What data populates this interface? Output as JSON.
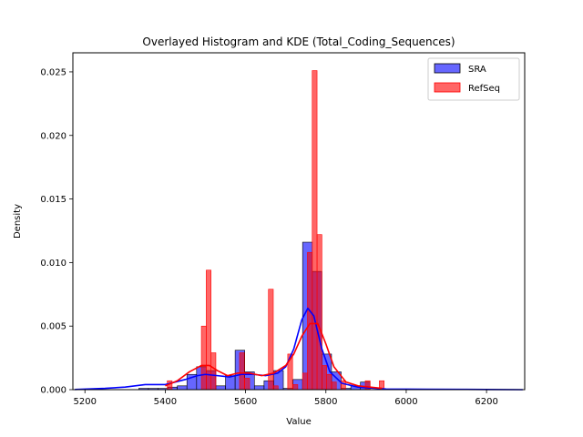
{
  "chart_data": {
    "type": "bar",
    "title": "Overlayed Histogram and KDE (Total_Coding_Sequences)",
    "xlabel": "Value",
    "ylabel": "Density",
    "xlim": [
      5170,
      6295
    ],
    "ylim": [
      0,
      0.0265
    ],
    "xticks": [
      5200,
      5400,
      5600,
      5800,
      6000,
      6200
    ],
    "xtick_labels": [
      "5200",
      "5400",
      "5600",
      "5800",
      "6000",
      "6200"
    ],
    "yticks": [
      0,
      0.005,
      0.01,
      0.015,
      0.02,
      0.025
    ],
    "ytick_labels": [
      "0.000",
      "0.005",
      "0.010",
      "0.015",
      "0.020",
      "0.025"
    ],
    "legend_position": "top-right",
    "series": [
      {
        "name": "SRA",
        "color": "#0000ff",
        "bin_width": 24,
        "bins": [
          [
            5334,
            0.0001
          ],
          [
            5358,
            0.0001
          ],
          [
            5382,
            0.0001
          ],
          [
            5406,
            0.0002
          ],
          [
            5430,
            0.0003
          ],
          [
            5454,
            0.0012
          ],
          [
            5478,
            0.0018
          ],
          [
            5502,
            0.0015
          ],
          [
            5526,
            0.0003
          ],
          [
            5550,
            0.0011
          ],
          [
            5574,
            0.0031
          ],
          [
            5598,
            0.0014
          ],
          [
            5622,
            0.0003
          ],
          [
            5646,
            0.0007
          ],
          [
            5670,
            0.0015
          ],
          [
            5694,
            0.0001
          ],
          [
            5718,
            0.0008
          ],
          [
            5742,
            0.0116
          ],
          [
            5766,
            0.0093
          ],
          [
            5790,
            0.0028
          ],
          [
            5814,
            0.0014
          ],
          [
            5838,
            0.0001
          ],
          [
            5862,
            0.0003
          ],
          [
            5886,
            0.0006
          ]
        ],
        "kde": {
          "x": [
            5175,
            5250,
            5300,
            5350,
            5400,
            5450,
            5480,
            5500,
            5530,
            5560,
            5590,
            5620,
            5650,
            5680,
            5700,
            5720,
            5740,
            5755,
            5770,
            5790,
            5810,
            5840,
            5880,
            5950,
            6050,
            6150,
            6200,
            6290
          ],
          "y": [
            1e-05,
            0.0001,
            0.0002,
            0.0004,
            0.0004,
            0.0008,
            0.0011,
            0.0012,
            0.0011,
            0.001,
            0.0012,
            0.0012,
            0.0011,
            0.0013,
            0.0018,
            0.0032,
            0.0055,
            0.0064,
            0.0058,
            0.0032,
            0.0014,
            0.0005,
            0.0002,
            5e-05,
            3e-05,
            2e-05,
            1e-05,
            0.0
          ]
        }
      },
      {
        "name": "RefSeq",
        "color": "#ff0000",
        "bin_width": 12,
        "bins": [
          [
            5405,
            0.0007
          ],
          [
            5490,
            0.005
          ],
          [
            5502,
            0.0094
          ],
          [
            5514,
            0.0029
          ],
          [
            5585,
            0.0029
          ],
          [
            5598,
            0.0009
          ],
          [
            5657,
            0.0079
          ],
          [
            5669,
            0.0003
          ],
          [
            5705,
            0.0028
          ],
          [
            5718,
            0.0004
          ],
          [
            5742,
            0.0013
          ],
          [
            5754,
            0.0108
          ],
          [
            5766,
            0.0251
          ],
          [
            5778,
            0.0122
          ],
          [
            5790,
            0.0019
          ],
          [
            5802,
            0.0012
          ],
          [
            5814,
            0.0006
          ],
          [
            5837,
            0.0007
          ],
          [
            5898,
            0.0007
          ],
          [
            5933,
            0.0007
          ]
        ],
        "kde": {
          "x": [
            5400,
            5430,
            5460,
            5490,
            5510,
            5530,
            5555,
            5580,
            5610,
            5640,
            5670,
            5700,
            5720,
            5740,
            5760,
            5780,
            5800,
            5820,
            5850,
            5880,
            5910,
            5940
          ],
          "y": [
            0.0003,
            0.0007,
            0.0014,
            0.0019,
            0.0019,
            0.0015,
            0.0011,
            0.0013,
            0.0013,
            0.0011,
            0.0013,
            0.0019,
            0.0028,
            0.0042,
            0.0052,
            0.0052,
            0.0036,
            0.0018,
            0.0006,
            0.0003,
            0.0002,
            0.0001
          ]
        }
      }
    ]
  }
}
